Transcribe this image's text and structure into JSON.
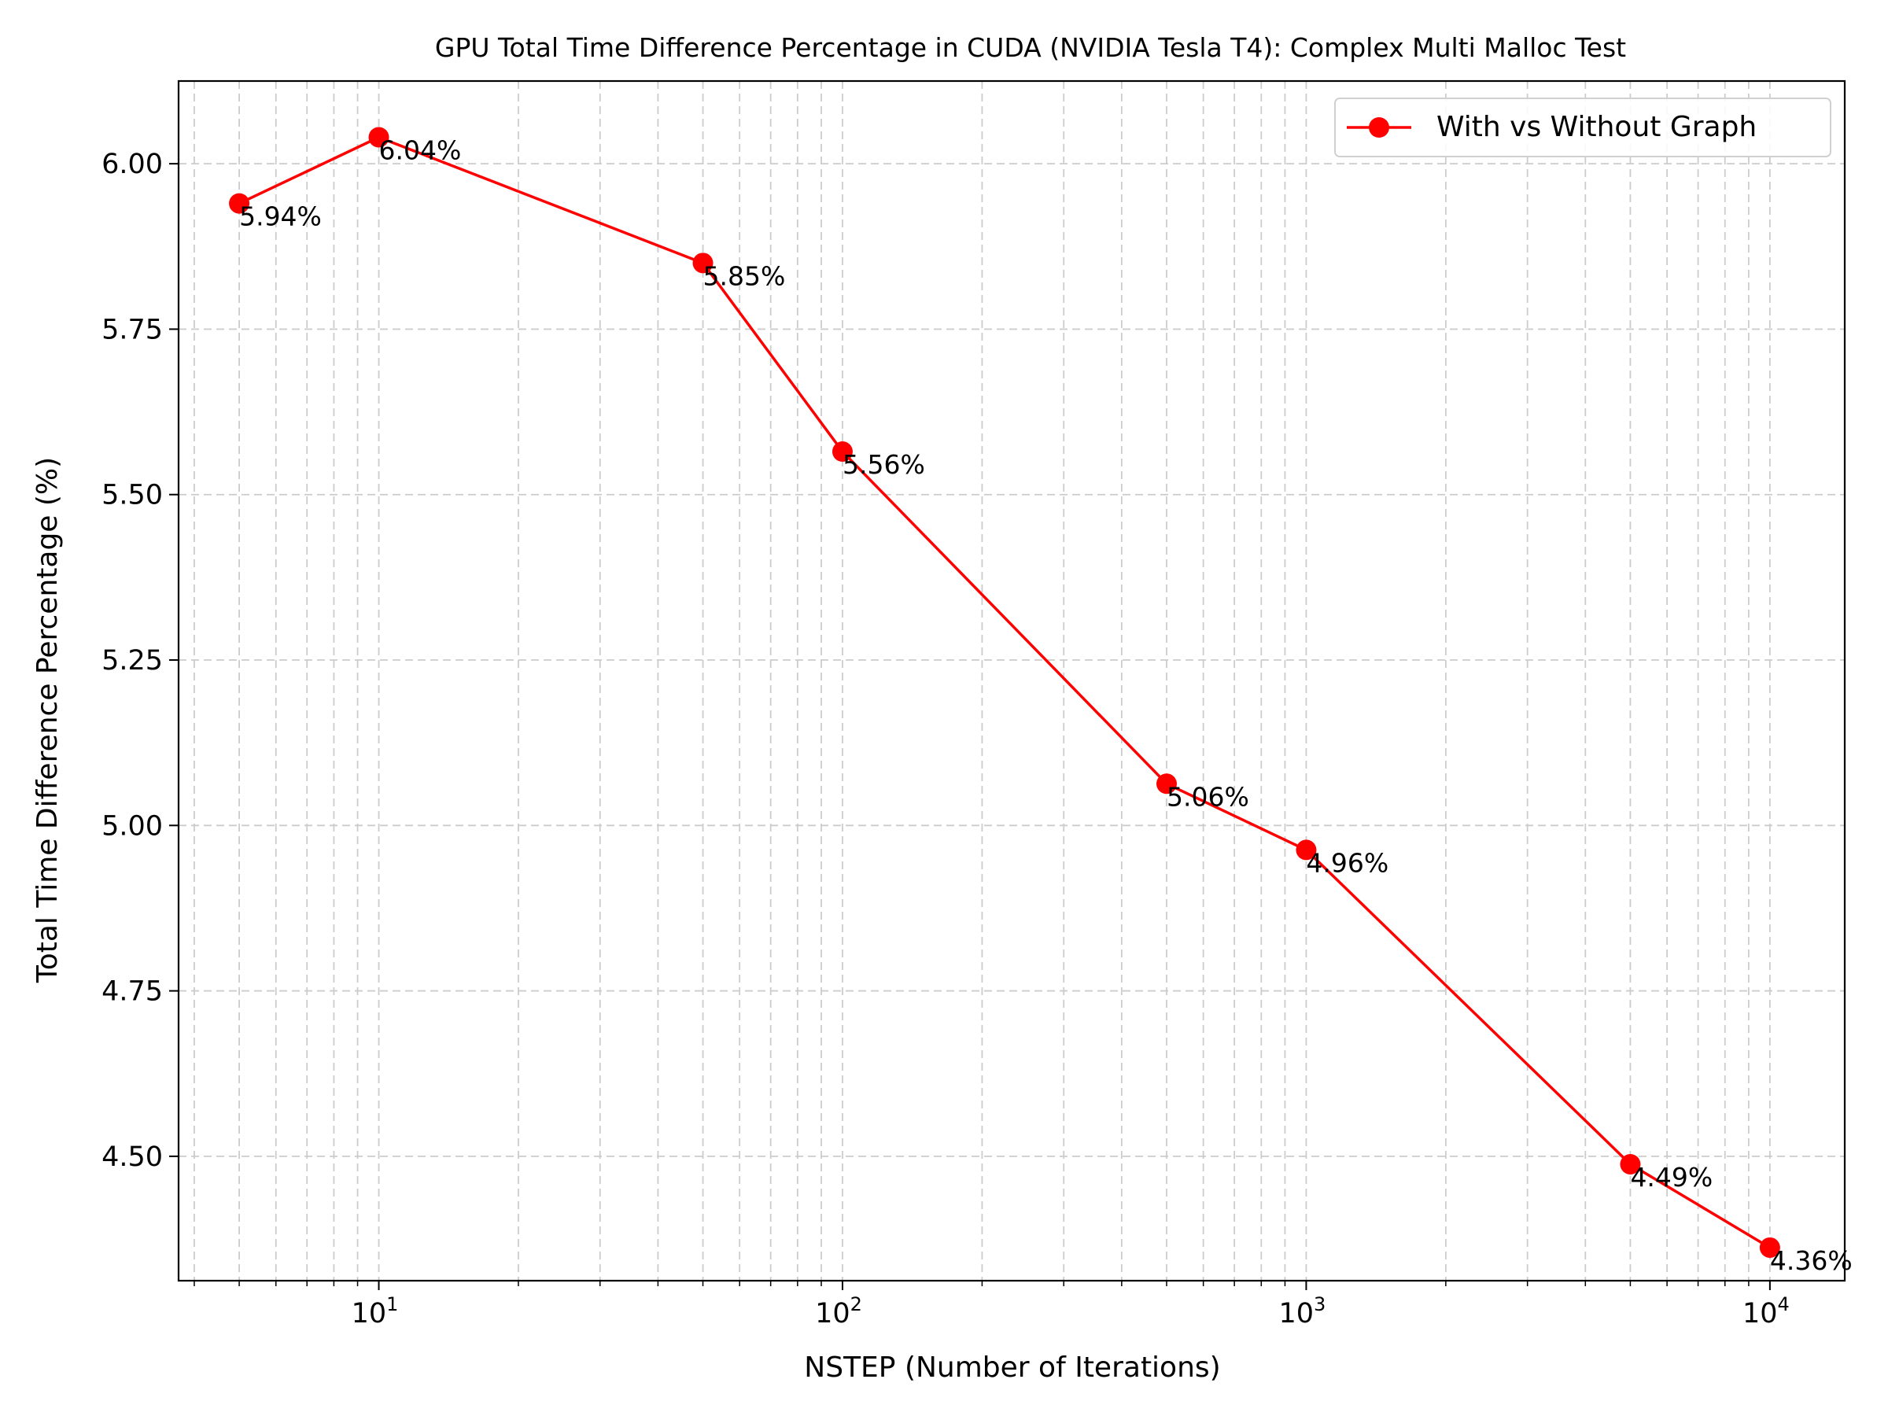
{
  "chart_data": {
    "type": "line",
    "title": "GPU Total Time Difference Percentage in CUDA (NVIDIA Tesla T4): Complex Multi Malloc Test",
    "xlabel": "NSTEP (Number of Iterations)",
    "ylabel": "Total Time Difference Percentage (%)",
    "x_scale": "log",
    "xlim": [
      3.7,
      14500
    ],
    "ylim": [
      4.312,
      6.125
    ],
    "x_ticks": [
      {
        "value": 10,
        "base": "10",
        "exp": "1"
      },
      {
        "value": 100,
        "base": "10",
        "exp": "2"
      },
      {
        "value": 1000,
        "base": "10",
        "exp": "3"
      },
      {
        "value": 10000,
        "base": "10",
        "exp": "4"
      }
    ],
    "y_ticks": [
      {
        "value": 4.5,
        "label": "4.50"
      },
      {
        "value": 4.75,
        "label": "4.75"
      },
      {
        "value": 5.0,
        "label": "5.00"
      },
      {
        "value": 5.25,
        "label": "5.25"
      },
      {
        "value": 5.5,
        "label": "5.50"
      },
      {
        "value": 5.75,
        "label": "5.75"
      },
      {
        "value": 6.0,
        "label": "6.00"
      }
    ],
    "grid": true,
    "grid_style": "dashed, major and minor",
    "legend_position": "top-right",
    "series": [
      {
        "name": "With vs Without Graph",
        "color": "#ff0000",
        "marker": "circle",
        "x": [
          5,
          10,
          50,
          100,
          500,
          1000,
          5000,
          10000
        ],
        "y": [
          5.94,
          6.04,
          5.85,
          5.565,
          5.063,
          4.963,
          4.488,
          4.362
        ],
        "data_labels": [
          "5.94%",
          "6.04%",
          "5.85%",
          "5.56%",
          "5.06%",
          "4.96%",
          "4.49%",
          "4.36%"
        ]
      }
    ]
  }
}
